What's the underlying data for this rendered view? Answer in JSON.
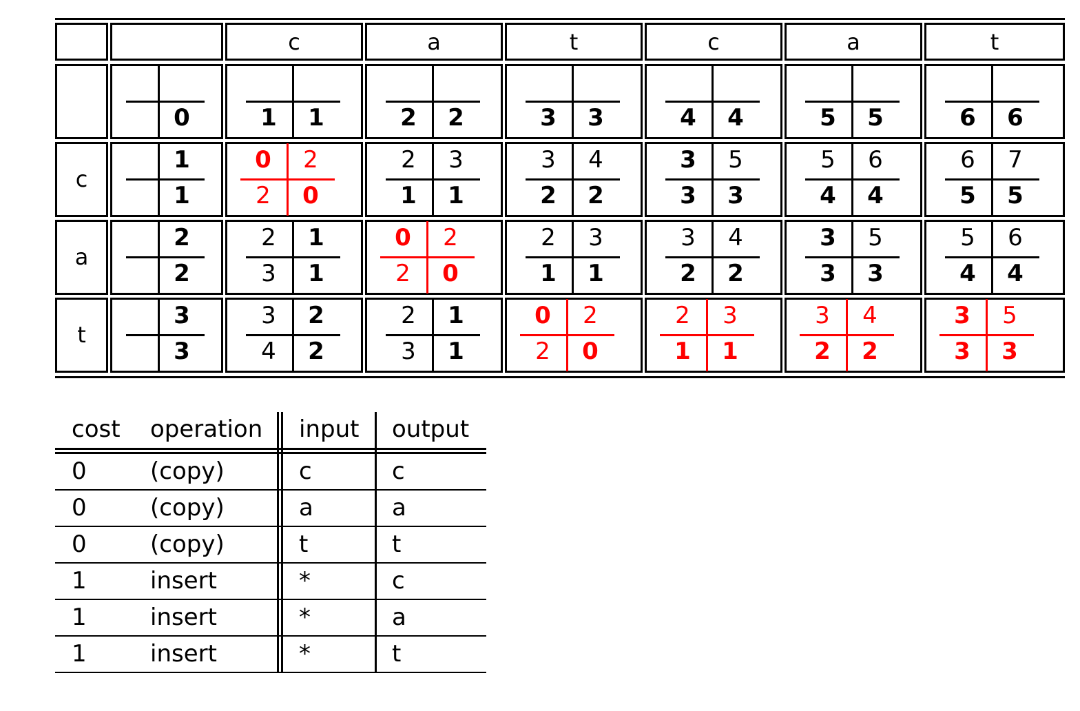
{
  "accent_color": "#ff0000",
  "dp_table": {
    "column_headers": [
      "",
      "",
      "c",
      "a",
      "t",
      "c",
      "a",
      "t"
    ],
    "row_headers": [
      "",
      "c",
      "a",
      "t"
    ],
    "rows": [
      [
        {
          "v": [
            "",
            "",
            "",
            "0"
          ],
          "b": [
            0,
            0,
            0,
            1
          ],
          "red": false
        },
        {
          "v": [
            "",
            "",
            "1",
            "1"
          ],
          "b": [
            0,
            0,
            1,
            1
          ],
          "red": false
        },
        {
          "v": [
            "",
            "",
            "2",
            "2"
          ],
          "b": [
            0,
            0,
            1,
            1
          ],
          "red": false
        },
        {
          "v": [
            "",
            "",
            "3",
            "3"
          ],
          "b": [
            0,
            0,
            1,
            1
          ],
          "red": false
        },
        {
          "v": [
            "",
            "",
            "4",
            "4"
          ],
          "b": [
            0,
            0,
            1,
            1
          ],
          "red": false
        },
        {
          "v": [
            "",
            "",
            "5",
            "5"
          ],
          "b": [
            0,
            0,
            1,
            1
          ],
          "red": false
        },
        {
          "v": [
            "",
            "",
            "6",
            "6"
          ],
          "b": [
            0,
            0,
            1,
            1
          ],
          "red": false
        }
      ],
      [
        {
          "v": [
            "",
            "1",
            "",
            "1"
          ],
          "b": [
            0,
            1,
            0,
            1
          ],
          "red": false
        },
        {
          "v": [
            "0",
            "2",
            "2",
            "0"
          ],
          "b": [
            1,
            0,
            0,
            1
          ],
          "red": true
        },
        {
          "v": [
            "2",
            "3",
            "1",
            "1"
          ],
          "b": [
            0,
            0,
            1,
            1
          ],
          "red": false
        },
        {
          "v": [
            "3",
            "4",
            "2",
            "2"
          ],
          "b": [
            0,
            0,
            1,
            1
          ],
          "red": false
        },
        {
          "v": [
            "3",
            "5",
            "3",
            "3"
          ],
          "b": [
            1,
            0,
            1,
            1
          ],
          "red": false
        },
        {
          "v": [
            "5",
            "6",
            "4",
            "4"
          ],
          "b": [
            0,
            0,
            1,
            1
          ],
          "red": false
        },
        {
          "v": [
            "6",
            "7",
            "5",
            "5"
          ],
          "b": [
            0,
            0,
            1,
            1
          ],
          "red": false
        }
      ],
      [
        {
          "v": [
            "",
            "2",
            "",
            "2"
          ],
          "b": [
            0,
            1,
            0,
            1
          ],
          "red": false
        },
        {
          "v": [
            "2",
            "1",
            "3",
            "1"
          ],
          "b": [
            0,
            1,
            0,
            1
          ],
          "red": false
        },
        {
          "v": [
            "0",
            "2",
            "2",
            "0"
          ],
          "b": [
            1,
            0,
            0,
            1
          ],
          "red": true
        },
        {
          "v": [
            "2",
            "3",
            "1",
            "1"
          ],
          "b": [
            0,
            0,
            1,
            1
          ],
          "red": false
        },
        {
          "v": [
            "3",
            "4",
            "2",
            "2"
          ],
          "b": [
            0,
            0,
            1,
            1
          ],
          "red": false
        },
        {
          "v": [
            "3",
            "5",
            "3",
            "3"
          ],
          "b": [
            1,
            0,
            1,
            1
          ],
          "red": false
        },
        {
          "v": [
            "5",
            "6",
            "4",
            "4"
          ],
          "b": [
            0,
            0,
            1,
            1
          ],
          "red": false
        }
      ],
      [
        {
          "v": [
            "",
            "3",
            "",
            "3"
          ],
          "b": [
            0,
            1,
            0,
            1
          ],
          "red": false
        },
        {
          "v": [
            "3",
            "2",
            "4",
            "2"
          ],
          "b": [
            0,
            1,
            0,
            1
          ],
          "red": false
        },
        {
          "v": [
            "2",
            "1",
            "3",
            "1"
          ],
          "b": [
            0,
            1,
            0,
            1
          ],
          "red": false
        },
        {
          "v": [
            "0",
            "2",
            "2",
            "0"
          ],
          "b": [
            1,
            0,
            0,
            1
          ],
          "red": true
        },
        {
          "v": [
            "2",
            "3",
            "1",
            "1"
          ],
          "b": [
            0,
            0,
            1,
            1
          ],
          "red": true
        },
        {
          "v": [
            "3",
            "4",
            "2",
            "2"
          ],
          "b": [
            0,
            0,
            1,
            1
          ],
          "red": true
        },
        {
          "v": [
            "3",
            "5",
            "3",
            "3"
          ],
          "b": [
            1,
            0,
            1,
            1
          ],
          "red": true
        }
      ]
    ]
  },
  "ops_table": {
    "headers": [
      "cost",
      "operation",
      "input",
      "output"
    ],
    "rows": [
      [
        "0",
        "(copy)",
        "c",
        "c"
      ],
      [
        "0",
        "(copy)",
        "a",
        "a"
      ],
      [
        "0",
        "(copy)",
        "t",
        "t"
      ],
      [
        "1",
        "insert",
        "*",
        "c"
      ],
      [
        "1",
        "insert",
        "*",
        "a"
      ],
      [
        "1",
        "insert",
        "*",
        "t"
      ]
    ]
  }
}
